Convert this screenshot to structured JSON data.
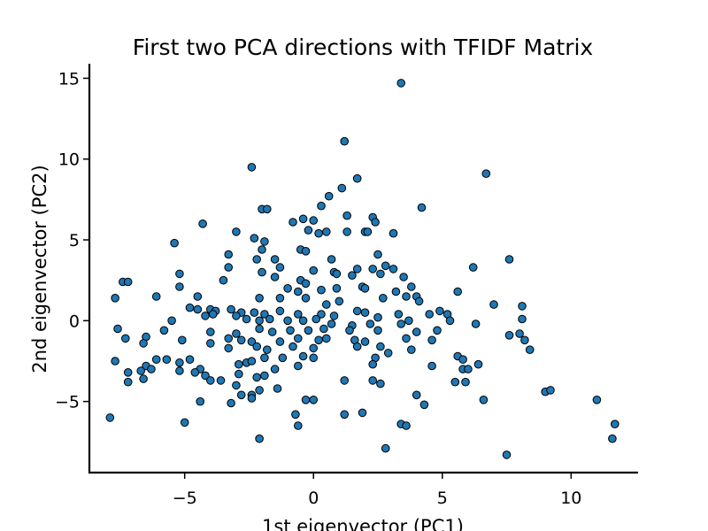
{
  "chart_data": {
    "type": "scatter",
    "title": "First two PCA directions with TFIDF Matrix",
    "xlabel": "1st eigenvector (PC1)",
    "ylabel": "2nd eigenvector (PC2)",
    "xlim": [
      -8.7,
      12.6
    ],
    "ylim": [
      -9.4,
      15.9
    ],
    "xticks": [
      -5,
      0,
      5,
      10
    ],
    "xtick_labels": [
      "−5",
      "0",
      "5",
      "10"
    ],
    "yticks": [
      -5,
      0,
      5,
      10,
      15
    ],
    "ytick_labels": [
      "−5",
      "0",
      "5",
      "10",
      "15"
    ],
    "grid": false,
    "point_color": "#1f77b4",
    "edge_color": "#000000",
    "points": [
      [
        3.4,
        14.7
      ],
      [
        1.2,
        11.1
      ],
      [
        -2.4,
        9.5
      ],
      [
        6.7,
        9.1
      ],
      [
        1.7,
        8.8
      ],
      [
        1.1,
        8.2
      ],
      [
        0.6,
        7.7
      ],
      [
        0.3,
        7.1
      ],
      [
        -2.0,
        6.9
      ],
      [
        -1.8,
        6.9
      ],
      [
        4.2,
        7.0
      ],
      [
        -0.8,
        6.1
      ],
      [
        -0.4,
        6.3
      ],
      [
        0.0,
        6.2
      ],
      [
        1.3,
        6.5
      ],
      [
        2.3,
        6.4
      ],
      [
        2.4,
        6.1
      ],
      [
        -4.3,
        6.0
      ],
      [
        -0.2,
        5.6
      ],
      [
        0.2,
        5.4
      ],
      [
        0.5,
        5.5
      ],
      [
        1.3,
        5.5
      ],
      [
        2.0,
        5.5
      ],
      [
        2.1,
        5.5
      ],
      [
        3.1,
        5.4
      ],
      [
        -3.0,
        5.5
      ],
      [
        -2.3,
        5.1
      ],
      [
        -1.9,
        4.9
      ],
      [
        -5.4,
        4.8
      ],
      [
        -2.0,
        4.4
      ],
      [
        -0.5,
        4.4
      ],
      [
        -0.3,
        4.3
      ],
      [
        -3.3,
        4.1
      ],
      [
        -2.2,
        3.8
      ],
      [
        -1.5,
        3.8
      ],
      [
        0.7,
        3.8
      ],
      [
        2.5,
        4.1
      ],
      [
        7.6,
        3.8
      ],
      [
        -3.3,
        3.3
      ],
      [
        -1.3,
        3.3
      ],
      [
        0.0,
        3.1
      ],
      [
        0.8,
        3.0
      ],
      [
        1.7,
        3.2
      ],
      [
        2.3,
        3.2
      ],
      [
        2.8,
        3.4
      ],
      [
        3.1,
        3.2
      ],
      [
        6.2,
        3.3
      ],
      [
        -5.2,
        2.9
      ],
      [
        -2.0,
        3.0
      ],
      [
        -1.5,
        2.7
      ],
      [
        -0.5,
        2.5
      ],
      [
        -0.3,
        2.3
      ],
      [
        0.9,
        2.9
      ],
      [
        1.5,
        2.8
      ],
      [
        2.6,
        2.9
      ],
      [
        3.5,
        2.7
      ],
      [
        -7.4,
        2.4
      ],
      [
        -7.2,
        2.4
      ],
      [
        -3.5,
        2.5
      ],
      [
        -5.2,
        2.1
      ],
      [
        -1.0,
        2.0
      ],
      [
        -0.6,
        1.8
      ],
      [
        0.3,
        1.9
      ],
      [
        0.9,
        2.0
      ],
      [
        1.9,
        2.1
      ],
      [
        2.0,
        2.0
      ],
      [
        3.2,
        1.8
      ],
      [
        3.8,
        2.1
      ],
      [
        4.0,
        1.5
      ],
      [
        5.6,
        1.8
      ],
      [
        -6.1,
        1.5
      ],
      [
        -4.5,
        1.5
      ],
      [
        -2.1,
        1.4
      ],
      [
        -1.3,
        1.4
      ],
      [
        -0.3,
        1.4
      ],
      [
        0.5,
        1.0
      ],
      [
        1.0,
        1.2
      ],
      [
        2.7,
        1.4
      ],
      [
        3.6,
        1.5
      ],
      [
        4.1,
        1.2
      ],
      [
        7.0,
        1.0
      ],
      [
        -7.7,
        1.4
      ],
      [
        -4.8,
        0.8
      ],
      [
        -4.5,
        0.7
      ],
      [
        -4.0,
        0.7
      ],
      [
        -3.8,
        0.6
      ],
      [
        -3.2,
        0.7
      ],
      [
        -2.8,
        0.5
      ],
      [
        -2.3,
        0.5
      ],
      [
        -1.9,
        0.4
      ],
      [
        -1.3,
        0.6
      ],
      [
        -0.6,
        0.4
      ],
      [
        0.3,
        0.4
      ],
      [
        0.8,
        0.3
      ],
      [
        1.7,
        0.6
      ],
      [
        2.0,
        0.5
      ],
      [
        2.5,
        0.2
      ],
      [
        3.3,
        0.4
      ],
      [
        4.5,
        0.4
      ],
      [
        4.9,
        0.6
      ],
      [
        5.2,
        0.4
      ],
      [
        8.1,
        0.9
      ],
      [
        -5.5,
        0.0
      ],
      [
        -4.2,
        0.3
      ],
      [
        -3.9,
        0.4
      ],
      [
        -3.0,
        0.3
      ],
      [
        -2.6,
        0.1
      ],
      [
        -2.1,
        0.0
      ],
      [
        -1.7,
        0.1
      ],
      [
        -1.0,
        0.0
      ],
      [
        -0.4,
        0.0
      ],
      [
        0.1,
        0.1
      ],
      [
        0.7,
        -0.2
      ],
      [
        1.5,
        -0.3
      ],
      [
        2.2,
        -0.2
      ],
      [
        3.4,
        -0.2
      ],
      [
        3.7,
        0.0
      ],
      [
        5.3,
        0.0
      ],
      [
        6.3,
        -0.2
      ],
      [
        8.1,
        0.1
      ],
      [
        -7.6,
        -0.5
      ],
      [
        -5.8,
        -0.6
      ],
      [
        -4.0,
        -0.7
      ],
      [
        -3.0,
        -0.8
      ],
      [
        -2.1,
        -0.5
      ],
      [
        -1.6,
        -0.7
      ],
      [
        -0.9,
        -0.6
      ],
      [
        -0.2,
        -0.6
      ],
      [
        0.4,
        -0.5
      ],
      [
        1.4,
        -0.6
      ],
      [
        2.5,
        -0.6
      ],
      [
        4.0,
        -0.7
      ],
      [
        4.8,
        -0.6
      ],
      [
        7.6,
        -0.9
      ],
      [
        8.0,
        -0.8
      ],
      [
        -7.3,
        -1.1
      ],
      [
        -6.5,
        -1.0
      ],
      [
        -5.1,
        -1.2
      ],
      [
        -4.0,
        -1.4
      ],
      [
        -3.3,
        -1.1
      ],
      [
        -2.8,
        -1.2
      ],
      [
        -2.4,
        -1.3
      ],
      [
        -1.3,
        -1.3
      ],
      [
        -0.6,
        -1.1
      ],
      [
        0.2,
        -1.2
      ],
      [
        0.5,
        -1.1
      ],
      [
        1.6,
        -1.2
      ],
      [
        2.0,
        -1.3
      ],
      [
        3.6,
        -1.1
      ],
      [
        4.6,
        -1.2
      ],
      [
        8.2,
        -1.2
      ],
      [
        -6.6,
        -1.4
      ],
      [
        -3.3,
        -1.7
      ],
      [
        -2.2,
        -1.6
      ],
      [
        -1.8,
        -1.8
      ],
      [
        -0.8,
        -1.6
      ],
      [
        0.0,
        -1.7
      ],
      [
        1.7,
        -1.6
      ],
      [
        2.6,
        -1.6
      ],
      [
        3.8,
        -1.8
      ],
      [
        8.4,
        -1.8
      ],
      [
        -7.7,
        -2.5
      ],
      [
        -6.1,
        -2.4
      ],
      [
        -5.7,
        -2.4
      ],
      [
        -4.8,
        -2.4
      ],
      [
        -2.6,
        -2.6
      ],
      [
        -1.9,
        -2.3
      ],
      [
        -1.2,
        -2.3
      ],
      [
        -0.4,
        -2.2
      ],
      [
        0.0,
        -2.3
      ],
      [
        2.4,
        -2.3
      ],
      [
        2.9,
        -2.0
      ],
      [
        4.6,
        -2.8
      ],
      [
        5.6,
        -2.2
      ],
      [
        5.8,
        -2.4
      ],
      [
        -6.5,
        -2.8
      ],
      [
        -5.2,
        -2.6
      ],
      [
        -4.4,
        -3.0
      ],
      [
        -2.9,
        -2.7
      ],
      [
        -2.4,
        -2.5
      ],
      [
        -1.5,
        -3.0
      ],
      [
        -0.6,
        -2.8
      ],
      [
        2.3,
        -2.7
      ],
      [
        5.8,
        -3.0
      ],
      [
        6.0,
        -3.0
      ],
      [
        6.4,
        -2.7
      ],
      [
        -7.2,
        -3.2
      ],
      [
        -6.7,
        -3.1
      ],
      [
        -6.3,
        -3.0
      ],
      [
        -5.2,
        -3.1
      ],
      [
        -4.6,
        -3.2
      ],
      [
        -4.2,
        -3.4
      ],
      [
        -2.9,
        -3.3
      ],
      [
        -2.2,
        -3.5
      ],
      [
        -1.9,
        -3.4
      ],
      [
        1.2,
        -3.7
      ],
      [
        2.3,
        -3.7
      ],
      [
        5.5,
        -3.8
      ],
      [
        5.9,
        -3.8
      ],
      [
        -7.2,
        -3.8
      ],
      [
        -6.6,
        -3.6
      ],
      [
        -4.0,
        -3.7
      ],
      [
        -3.6,
        -3.7
      ],
      [
        -3.0,
        -4.0
      ],
      [
        -1.4,
        -4.2
      ],
      [
        2.6,
        -3.9
      ],
      [
        -2.8,
        -4.6
      ],
      [
        -2.4,
        -4.6
      ],
      [
        -2.1,
        -4.3
      ],
      [
        -0.3,
        -4.9
      ],
      [
        0.0,
        -4.9
      ],
      [
        4.0,
        -4.6
      ],
      [
        9.0,
        -4.4
      ],
      [
        9.2,
        -4.3
      ],
      [
        -4.4,
        -5.0
      ],
      [
        -3.2,
        -5.1
      ],
      [
        -2.4,
        -4.8
      ],
      [
        4.3,
        -5.2
      ],
      [
        6.6,
        -4.9
      ],
      [
        11.0,
        -4.9
      ],
      [
        -7.9,
        -6.0
      ],
      [
        -0.7,
        -5.8
      ],
      [
        1.2,
        -5.8
      ],
      [
        1.9,
        -5.7
      ],
      [
        -5.0,
        -6.3
      ],
      [
        -0.6,
        -6.5
      ],
      [
        3.4,
        -6.4
      ],
      [
        3.6,
        -6.5
      ],
      [
        11.7,
        -6.4
      ],
      [
        -2.1,
        -7.3
      ],
      [
        11.6,
        -7.3
      ],
      [
        2.8,
        -7.9
      ],
      [
        7.5,
        -8.3
      ]
    ]
  }
}
